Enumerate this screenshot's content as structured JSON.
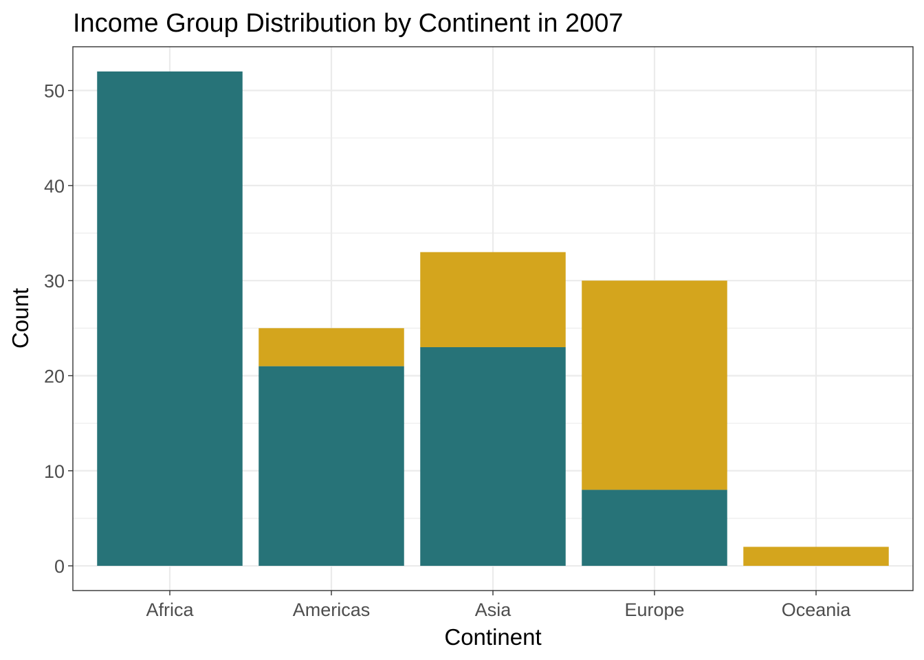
{
  "chart_data": {
    "type": "bar",
    "stacked": true,
    "title": "Income Group Distribution by Continent in 2007",
    "xlabel": "Continent",
    "ylabel": "Count",
    "categories": [
      "Africa",
      "Americas",
      "Asia",
      "Europe",
      "Oceania"
    ],
    "series": [
      {
        "color": "#277378",
        "values": [
          52,
          21,
          23,
          8,
          0
        ]
      },
      {
        "color": "#D4A51D",
        "values": [
          0,
          4,
          10,
          22,
          2
        ]
      }
    ],
    "ylim": [
      -2.6,
      54.6
    ],
    "yticks": [
      0,
      10,
      20,
      30,
      40,
      50
    ],
    "ytick_labels": [
      "0",
      "10",
      "20",
      "30",
      "40",
      "50"
    ],
    "grid": true,
    "legend": "none"
  }
}
